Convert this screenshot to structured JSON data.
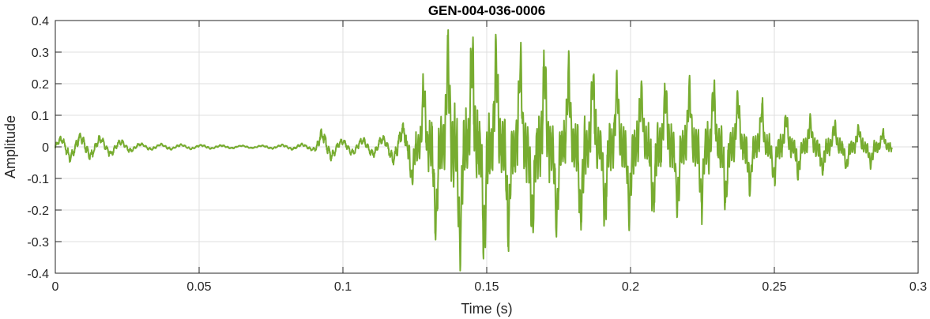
{
  "chart_data": {
    "type": "line",
    "title": "GEN-004-036-0006",
    "xlabel": "Time (s)",
    "ylabel": "Amplitude",
    "xlim": [
      0,
      0.3
    ],
    "ylim": [
      -0.4,
      0.4
    ],
    "xticks": [
      0,
      0.05,
      0.1,
      0.15,
      0.2,
      0.25,
      0.3
    ],
    "xtick_labels": [
      "0",
      "0.05",
      "0.1",
      "0.15",
      "0.2",
      "0.25",
      "0.3"
    ],
    "yticks": [
      0.4,
      0.3,
      0.2,
      0.1,
      0,
      -0.1,
      -0.2,
      -0.3,
      -0.4
    ],
    "ytick_labels": [
      "0.4",
      "0.3",
      "0.2",
      "0.1",
      "0",
      "-0.1",
      "-0.2",
      "-0.3",
      "-0.4"
    ],
    "grid": true,
    "series": [
      {
        "color": "#77ac30",
        "x_range": [
          0,
          0.291
        ],
        "envelope": [
          [
            0,
            0.02
          ],
          [
            0.005,
            0.04
          ],
          [
            0.015,
            0.03
          ],
          [
            0.03,
            0.01
          ],
          [
            0.05,
            0.006
          ],
          [
            0.07,
            0.004
          ],
          [
            0.09,
            0.01
          ],
          [
            0.092,
            0.05
          ],
          [
            0.1,
            0.02
          ],
          [
            0.115,
            0.03
          ],
          [
            0.122,
            0.07
          ],
          [
            0.127,
            0.2
          ],
          [
            0.132,
            0.28
          ],
          [
            0.14,
            0.36
          ],
          [
            0.15,
            0.34
          ],
          [
            0.16,
            0.3
          ],
          [
            0.175,
            0.27
          ],
          [
            0.19,
            0.24
          ],
          [
            0.21,
            0.2
          ],
          [
            0.23,
            0.21
          ],
          [
            0.24,
            0.16
          ],
          [
            0.255,
            0.1
          ],
          [
            0.27,
            0.08
          ],
          [
            0.285,
            0.06
          ],
          [
            0.291,
            0.04
          ]
        ],
        "beat_period_s": 0.0042
      }
    ]
  }
}
